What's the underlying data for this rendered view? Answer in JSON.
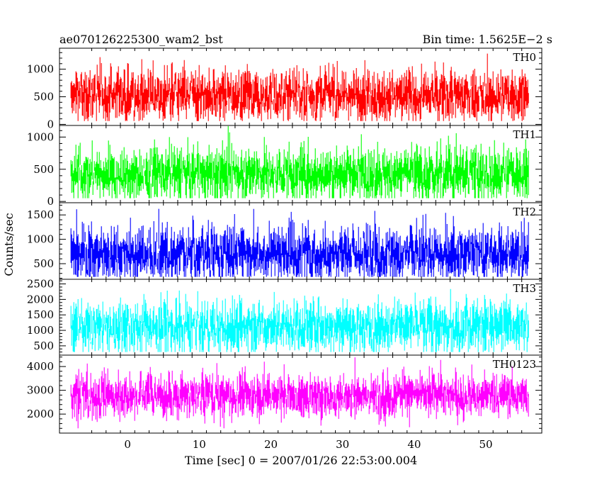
{
  "header": {
    "title": "ae070126225300_wam2_bst",
    "bin_time": "Bin time: 1.5625E−2 s"
  },
  "axes": {
    "ylabel": "Counts/sec",
    "xlabel": "Time [sec] 0 = 2007/01/26 22:53:00.004"
  },
  "chart_data": [
    {
      "type": "line",
      "name": "TH0",
      "color": "#ff0000",
      "x_range": [
        -7.9,
        56.0
      ],
      "ylim": [
        -20,
        1380
      ],
      "yticks": [
        0,
        500,
        1000
      ],
      "y_mean": 520,
      "y_min": 60,
      "y_max": 1380
    },
    {
      "type": "line",
      "name": "TH1",
      "color": "#00ff00",
      "x_range": [
        -7.9,
        56.0
      ],
      "ylim": [
        -20,
        1180
      ],
      "yticks": [
        0,
        500,
        1000
      ],
      "y_mean": 430,
      "y_min": 50,
      "y_max": 1180
    },
    {
      "type": "line",
      "name": "TH2",
      "color": "#0000ff",
      "x_range": [
        -7.9,
        56.0
      ],
      "ylim": [
        180,
        1750
      ],
      "yticks": [
        500,
        1000,
        1500
      ],
      "y_mean": 700,
      "y_min": 230,
      "y_max": 1750
    },
    {
      "type": "line",
      "name": "TH3",
      "color": "#00ffff",
      "x_range": [
        -7.9,
        56.0
      ],
      "ylim": [
        200,
        2650
      ],
      "yticks": [
        500,
        1000,
        1500,
        2000,
        2500
      ],
      "y_mean": 1120,
      "y_min": 300,
      "y_max": 2650
    },
    {
      "type": "line",
      "name": "TH0123",
      "color": "#ff00ff",
      "x_range": [
        -7.9,
        56.0
      ],
      "ylim": [
        1200,
        4480
      ],
      "yticks": [
        2000,
        3000,
        4000
      ],
      "y_mean": 2780,
      "y_min": 1400,
      "y_max": 4480
    }
  ],
  "x_axis": {
    "xlim": [
      -9.5,
      57.8
    ],
    "ticks": [
      0,
      10,
      20,
      30,
      40,
      50
    ]
  }
}
